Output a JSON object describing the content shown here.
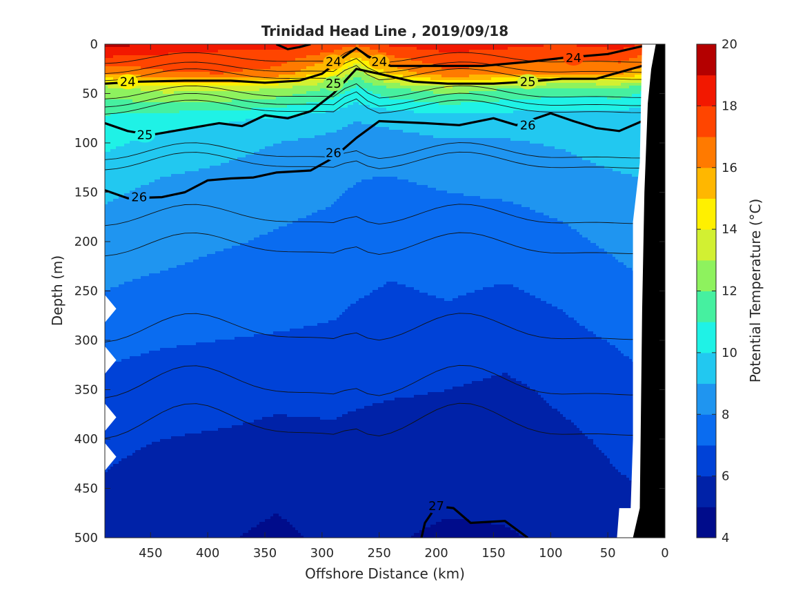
{
  "chart_data": {
    "type": "heatmap",
    "title": "Trinidad Head Line , 2019/09/18",
    "xlabel": "Offshore Distance (km)",
    "ylabel": "Depth (m)",
    "xlim": [
      0,
      490
    ],
    "ylim": [
      0,
      500
    ],
    "x_reversed": true,
    "y_reversed": true,
    "x_ticks": [
      "450",
      "400",
      "350",
      "300",
      "250",
      "200",
      "150",
      "100",
      "50",
      "0"
    ],
    "x_tick_values": [
      450,
      400,
      350,
      300,
      250,
      200,
      150,
      100,
      50,
      0
    ],
    "y_ticks": [
      "0",
      "50",
      "100",
      "150",
      "200",
      "250",
      "300",
      "350",
      "400",
      "450",
      "500"
    ],
    "y_tick_values": [
      0,
      50,
      100,
      150,
      200,
      250,
      300,
      350,
      400,
      450,
      500
    ],
    "colorbar": {
      "label": "Potential Temperature (°C)",
      "min": 4,
      "max": 20,
      "step": 1,
      "ticks": [
        "4",
        "6",
        "8",
        "10",
        "12",
        "14",
        "16",
        "18",
        "20"
      ],
      "tick_values": [
        4,
        6,
        8,
        10,
        12,
        14,
        16,
        18,
        20
      ],
      "colors": [
        "#000c8b",
        "#0022a8",
        "#0042d7",
        "#0a6cf0",
        "#1f95f0",
        "#22c8f0",
        "#1ff2e6",
        "#46f0a0",
        "#8ef25e",
        "#d2f032",
        "#fff000",
        "#ffb700",
        "#ff7a00",
        "#ff4500",
        "#f21800",
        "#b40000"
      ]
    },
    "temperature_profiles": [
      {
        "depth": 0,
        "x": [
          490,
          440,
          390,
          340,
          290,
          270,
          240,
          190,
          140,
          90,
          40,
          20
        ],
        "t": [
          19.5,
          18.6,
          18.3,
          18.4,
          17.8,
          17.2,
          18.2,
          18.5,
          18.3,
          18.0,
          18.4,
          18.0
        ]
      },
      {
        "depth": 30,
        "x": [
          490,
          440,
          390,
          340,
          290,
          270,
          240,
          190,
          140,
          90,
          40,
          20
        ],
        "t": [
          16.0,
          16.8,
          17.0,
          16.6,
          14.5,
          12.2,
          15.2,
          16.8,
          16.3,
          16.0,
          16.1,
          15.4
        ]
      },
      {
        "depth": 45,
        "x": [
          490,
          440,
          390,
          340,
          290,
          270,
          240,
          190,
          140,
          90,
          40,
          20
        ],
        "t": [
          12.6,
          13.4,
          13.4,
          13.0,
          11.8,
          10.8,
          11.8,
          12.6,
          12.0,
          11.6,
          11.8,
          11.2
        ]
      },
      {
        "depth": 75,
        "x": [
          490,
          440,
          390,
          340,
          290,
          270,
          240,
          190,
          140,
          90,
          40,
          20
        ],
        "t": [
          10.8,
          10.4,
          10.2,
          9.9,
          9.4,
          9.1,
          9.3,
          9.6,
          9.5,
          9.3,
          9.4,
          9.2
        ]
      },
      {
        "depth": 100,
        "x": [
          490,
          440,
          390,
          340,
          290,
          270,
          240,
          190,
          140,
          90,
          40,
          20
        ],
        "t": [
          10.2,
          9.7,
          9.4,
          9.0,
          8.7,
          8.4,
          8.6,
          8.9,
          8.9,
          9.1,
          9.6,
          9.7
        ]
      },
      {
        "depth": 150,
        "x": [
          490,
          440,
          390,
          340,
          290,
          270,
          240,
          190,
          140,
          90,
          40,
          20
        ],
        "t": [
          9.2,
          8.7,
          8.5,
          8.3,
          8.1,
          7.9,
          7.7,
          8.0,
          8.1,
          8.3,
          8.6,
          8.7
        ]
      },
      {
        "depth": 200,
        "x": [
          490,
          440,
          390,
          340,
          290,
          270,
          240,
          190,
          140,
          90,
          40,
          20
        ],
        "t": [
          8.4,
          8.3,
          8.1,
          7.9,
          7.7,
          7.6,
          7.4,
          7.5,
          7.5,
          7.8,
          8.2,
          8.3
        ]
      },
      {
        "depth": 250,
        "x": [
          490,
          440,
          390,
          340,
          290,
          270,
          240,
          190,
          140,
          90,
          40,
          20
        ],
        "t": [
          8.0,
          7.8,
          7.6,
          7.5,
          7.3,
          7.1,
          6.9,
          7.1,
          6.9,
          7.2,
          7.7,
          7.9
        ]
      },
      {
        "depth": 300,
        "x": [
          490,
          440,
          390,
          340,
          290,
          270,
          240,
          190,
          140,
          90,
          40,
          20
        ],
        "t": [
          7.3,
          7.1,
          7.0,
          6.9,
          6.8,
          6.6,
          6.5,
          6.6,
          6.4,
          6.7,
          7.1,
          7.3
        ]
      },
      {
        "depth": 350,
        "x": [
          490,
          440,
          390,
          340,
          290,
          270,
          240,
          190,
          140,
          90,
          40,
          20
        ],
        "t": [
          6.7,
          6.5,
          6.4,
          6.2,
          6.3,
          6.2,
          6.1,
          6.0,
          5.8,
          6.2,
          6.6,
          6.8
        ]
      },
      {
        "depth": 400,
        "x": [
          490,
          440,
          390,
          340,
          290,
          270,
          240,
          190,
          140,
          90,
          40,
          20
        ],
        "t": [
          6.2,
          6.0,
          5.9,
          5.8,
          5.8,
          5.7,
          5.6,
          5.6,
          5.5,
          5.8,
          6.2,
          6.3
        ]
      },
      {
        "depth": 450,
        "x": [
          490,
          440,
          390,
          340,
          290,
          270,
          240,
          190,
          140,
          90,
          40,
          20
        ],
        "t": [
          5.9,
          5.6,
          5.5,
          5.2,
          5.5,
          5.5,
          5.4,
          5.3,
          5.3,
          5.5,
          5.9,
          6.0
        ]
      },
      {
        "depth": 500,
        "x": [
          490,
          440,
          390,
          340,
          290,
          270,
          240,
          190,
          140,
          90,
          40,
          20
        ],
        "t": [
          5.5,
          5.2,
          5.1,
          4.8,
          5.2,
          5.3,
          5.1,
          4.8,
          4.9,
          5.2,
          5.6,
          5.7
        ]
      }
    ],
    "density_contours": [
      {
        "label": "24",
        "label_positions": [
          [
            470,
            38
          ],
          [
            290,
            18
          ],
          [
            250,
            18
          ],
          [
            80,
            14
          ]
        ],
        "segments": [
          [
            [
              490,
              40
            ],
            [
              460,
              38
            ],
            [
              420,
              37
            ],
            [
              380,
              37
            ],
            [
              350,
              39
            ],
            [
              320,
              37
            ],
            [
              300,
              30
            ],
            [
              280,
              12
            ],
            [
              270,
              4
            ],
            [
              260,
              12
            ],
            [
              240,
              22
            ],
            [
              200,
              22
            ],
            [
              160,
              22
            ],
            [
              120,
              18
            ],
            [
              90,
              14
            ],
            [
              50,
              10
            ],
            [
              20,
              2
            ]
          ],
          [
            [
              340,
              0
            ],
            [
              330,
              5
            ],
            [
              320,
              3
            ],
            [
              310,
              0
            ]
          ]
        ]
      },
      {
        "label": "25",
        "label_positions": [
          [
            455,
            92
          ],
          [
            290,
            40
          ],
          [
            120,
            38
          ]
        ],
        "segments": [
          [
            [
              490,
              80
            ],
            [
              470,
              88
            ],
            [
              450,
              92
            ],
            [
              420,
              86
            ],
            [
              390,
              80
            ],
            [
              370,
              83
            ],
            [
              350,
              72
            ],
            [
              330,
              75
            ],
            [
              310,
              68
            ],
            [
              290,
              50
            ],
            [
              270,
              25
            ],
            [
              250,
              30
            ],
            [
              220,
              38
            ],
            [
              190,
              40
            ],
            [
              150,
              40
            ],
            [
              120,
              38
            ],
            [
              90,
              35
            ],
            [
              60,
              35
            ],
            [
              20,
              22
            ]
          ]
        ]
      },
      {
        "label": "26",
        "label_positions": [
          [
            460,
            155
          ],
          [
            290,
            110
          ],
          [
            120,
            82
          ]
        ],
        "segments": [
          [
            [
              490,
              148
            ],
            [
              470,
              156
            ],
            [
              440,
              155
            ],
            [
              420,
              150
            ],
            [
              400,
              138
            ],
            [
              380,
              136
            ],
            [
              360,
              135
            ],
            [
              340,
              130
            ],
            [
              310,
              128
            ],
            [
              290,
              115
            ],
            [
              270,
              95
            ],
            [
              250,
              78
            ],
            [
              210,
              80
            ],
            [
              180,
              82
            ],
            [
              150,
              75
            ],
            [
              130,
              82
            ],
            [
              100,
              70
            ],
            [
              80,
              78
            ],
            [
              60,
              85
            ],
            [
              40,
              88
            ],
            [
              20,
              78
            ]
          ]
        ]
      },
      {
        "label": "27",
        "label_positions": [
          [
            200,
            468
          ]
        ],
        "segments": [
          [
            [
              213,
              500
            ],
            [
              210,
              485
            ],
            [
              200,
              468
            ],
            [
              185,
              470
            ],
            [
              170,
              485
            ],
            [
              140,
              483
            ],
            [
              120,
              500
            ]
          ]
        ]
      }
    ],
    "thin_contour_depths": [
      15,
      25,
      32,
      50,
      58,
      65,
      110,
      120,
      175,
      205,
      290,
      345,
      385
    ],
    "mask": {
      "white_notches_depths": [
        268,
        320,
        378,
        418
      ],
      "white_notch_depth_half_height": 14,
      "white_notch_width_km": 10,
      "bottom_right_white": [
        [
          42,
          500
        ],
        [
          40,
          470
        ],
        [
          28,
          470
        ],
        [
          28,
          500
        ]
      ]
    },
    "topography": [
      [
        28,
        500
      ],
      [
        22,
        470
      ],
      [
        20,
        270
      ],
      [
        18,
        150
      ],
      [
        15,
        60
      ],
      [
        12,
        25
      ],
      [
        8,
        0
      ],
      [
        0,
        0
      ],
      [
        0,
        500
      ]
    ]
  }
}
